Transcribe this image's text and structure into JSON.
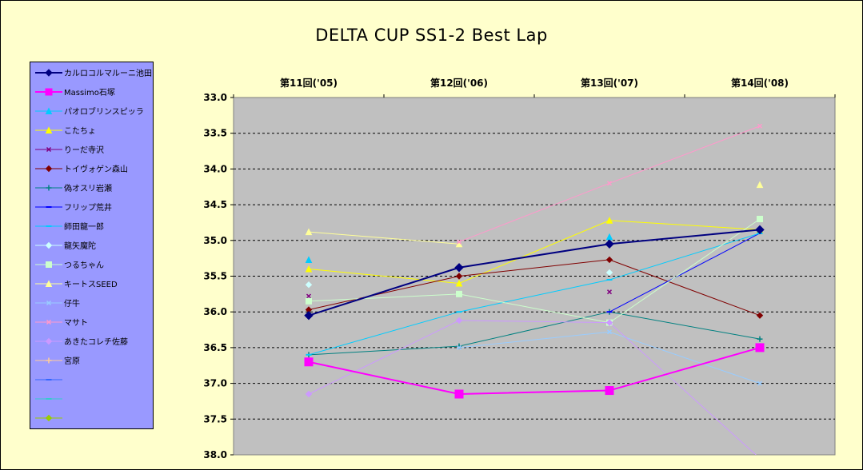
{
  "chart_data": {
    "type": "line",
    "title": "DELTA  CUP SS1-2 Best Lap",
    "categories": [
      "第11回('05)",
      "第12回('06)",
      "第13回('07)",
      "第14回('08)"
    ],
    "ylim": [
      33.0,
      38.0
    ],
    "y_reversed": true,
    "y_ticks": [
      "33.0",
      "33.5",
      "34.0",
      "34.5",
      "35.0",
      "35.5",
      "36.0",
      "36.5",
      "37.0",
      "37.5",
      "38.0"
    ],
    "grid": "horizontal dashed",
    "legend_position": "left",
    "plot_background": "#c0c0c0",
    "chart_background": "#ffffcc",
    "legend_background": "#9999ff",
    "series": [
      {
        "name": "カルロコルマルーニ池田",
        "color": "#000080",
        "marker": "diamond",
        "width": 2,
        "values": [
          36.05,
          35.38,
          35.05,
          34.85
        ]
      },
      {
        "name": "Massimo石塚",
        "color": "#ff00ff",
        "marker": "square",
        "width": 2,
        "values": [
          36.7,
          37.15,
          37.1,
          36.5
        ]
      },
      {
        "name": "パオロブリンスピッラ",
        "color": "#00ccff",
        "marker": "triangle",
        "width": 1,
        "values": [
          35.27,
          null,
          34.95,
          null
        ]
      },
      {
        "name": "こたちょ",
        "color": "#ffff00",
        "marker": "triangle",
        "width": 1,
        "values": [
          35.4,
          35.6,
          34.72,
          34.85
        ]
      },
      {
        "name": "りーだ寺沢",
        "color": "#800080",
        "marker": "x",
        "width": 1,
        "values": [
          35.78,
          null,
          35.72,
          null
        ]
      },
      {
        "name": "トイヴォゲン森山",
        "color": "#800000",
        "marker": "diamond",
        "width": 1,
        "values": [
          35.97,
          35.5,
          35.27,
          36.05
        ]
      },
      {
        "name": "偽オスリ岩瀬",
        "color": "#008080",
        "marker": "plus",
        "width": 1,
        "values": [
          36.6,
          36.48,
          36.0,
          36.38
        ]
      },
      {
        "name": "フリップ荒井",
        "color": "#0000ff",
        "marker": "dash",
        "width": 1,
        "values": [
          null,
          null,
          36.0,
          34.9
        ]
      },
      {
        "name": "師田龍一郎",
        "color": "#00ccff",
        "marker": "dash",
        "width": 1,
        "values": [
          36.6,
          36.0,
          35.55,
          34.9
        ]
      },
      {
        "name": "龍矢魔陀",
        "color": "#ccffff",
        "marker": "diamond",
        "width": 1,
        "values": [
          35.62,
          null,
          35.45,
          null
        ]
      },
      {
        "name": "つるちゃん",
        "color": "#ccffcc",
        "marker": "square",
        "width": 1,
        "values": [
          35.85,
          35.75,
          36.15,
          34.7
        ]
      },
      {
        "name": "キートスSEED",
        "color": "#ffff99",
        "marker": "triangle",
        "width": 1,
        "values": [
          34.88,
          35.05,
          null,
          34.22
        ]
      },
      {
        "name": "仔牛",
        "color": "#99ccff",
        "marker": "x",
        "width": 1,
        "values": [
          null,
          36.5,
          36.28,
          37.0
        ]
      },
      {
        "name": "マサト",
        "color": "#ff99cc",
        "marker": "x",
        "width": 1,
        "values": [
          null,
          35.02,
          34.2,
          33.4
        ]
      },
      {
        "name": "あきたコレチ佐藤",
        "color": "#cc99ff",
        "marker": "diamond",
        "width": 1,
        "values": [
          37.15,
          36.12,
          36.15,
          38.05
        ]
      },
      {
        "name": "宮原",
        "color": "#ffcc99",
        "marker": "plus",
        "width": 1,
        "values": [
          null,
          null,
          null,
          null
        ]
      },
      {
        "name": "",
        "color": "#3366ff",
        "marker": "dash",
        "width": 1,
        "values": [
          null,
          null,
          null,
          null
        ]
      },
      {
        "name": "",
        "color": "#33cccc",
        "marker": "dash",
        "width": 1,
        "values": [
          null,
          null,
          null,
          null
        ]
      },
      {
        "name": "",
        "color": "#99cc00",
        "marker": "diamond",
        "width": 1,
        "values": [
          null,
          null,
          null,
          null
        ]
      }
    ]
  }
}
